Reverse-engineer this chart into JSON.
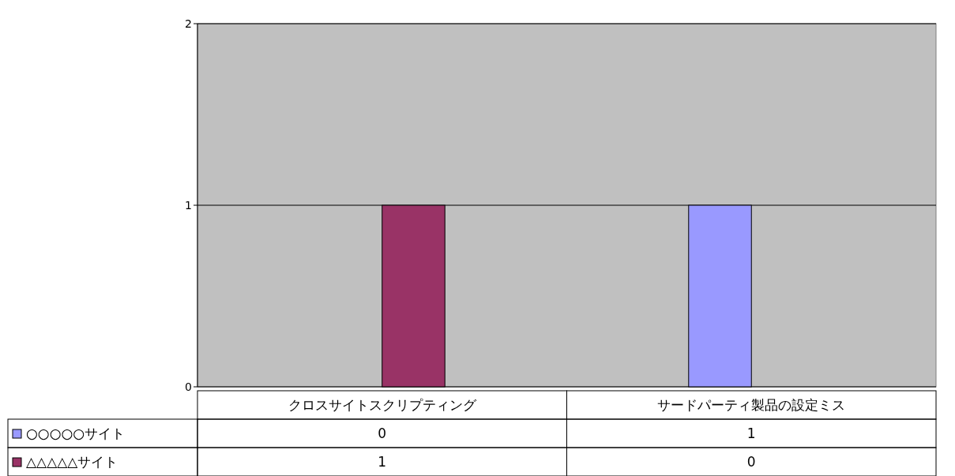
{
  "chart_data": {
    "type": "bar",
    "categories": [
      "クロスサイトスクリプティング",
      "サードパーティ製品の設定ミス"
    ],
    "series": [
      {
        "name": "○○○○○サイト",
        "color": "#9999ff",
        "values": [
          0,
          1
        ]
      },
      {
        "name": "△△△△△サイト",
        "color": "#993366",
        "values": [
          1,
          0
        ]
      }
    ],
    "ylim": [
      0,
      2
    ],
    "yticks": [
      0,
      1,
      2
    ],
    "grid": "y",
    "data_labels": true,
    "legend": "bottom left"
  }
}
